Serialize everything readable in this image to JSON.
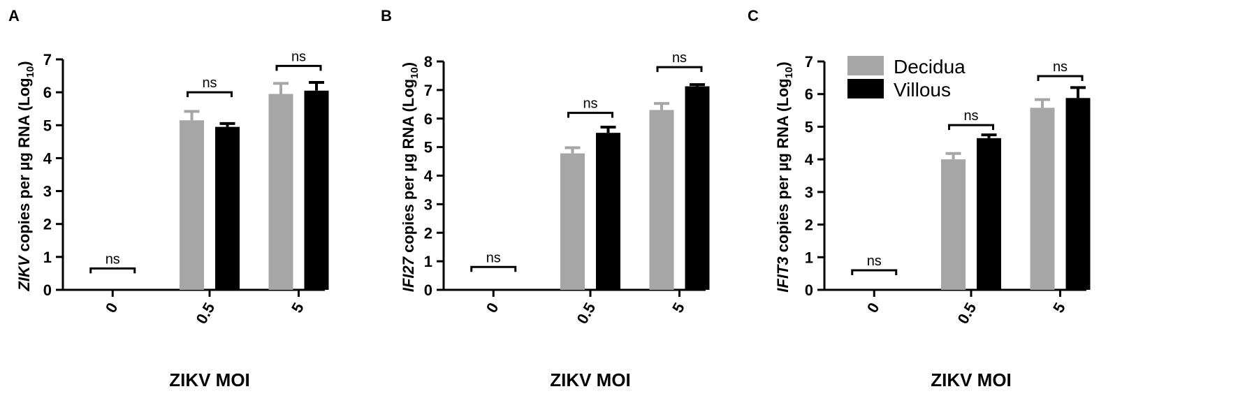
{
  "colors": {
    "decidua": "#a6a6a6",
    "villous": "#000000",
    "axis": "#000000"
  },
  "legend": {
    "placement": "top-left",
    "panel": "C",
    "items": [
      {
        "label": "Decidua",
        "color": "#a6a6a6"
      },
      {
        "label": "Villous",
        "color": "#000000"
      }
    ]
  },
  "chart_data": [
    {
      "type": "bar",
      "panel_label": "A",
      "categories": [
        "0",
        "0.5",
        "5"
      ],
      "xlabel": "ZIKV MOI",
      "ylabel": {
        "italic": "ZIKV",
        "text": " copies per µg RNA (Log",
        "sub": "10",
        "close": ")"
      },
      "ylim": [
        0,
        7
      ],
      "yticks": [
        "0",
        "1",
        "2",
        "3",
        "4",
        "5",
        "6",
        "7"
      ],
      "series": [
        {
          "name": "Decidua",
          "values": [
            0,
            5.15,
            5.95
          ],
          "errors": [
            0,
            0.27,
            0.32
          ]
        },
        {
          "name": "Villous",
          "values": [
            0,
            4.95,
            6.05
          ],
          "errors": [
            0,
            0.1,
            0.25
          ]
        }
      ],
      "annotations": [
        {
          "text": "ns",
          "category": 0,
          "y": 0.65
        },
        {
          "text": "ns",
          "category": 1,
          "y": 6.0
        },
        {
          "text": "ns",
          "category": 2,
          "y": 6.8
        }
      ]
    },
    {
      "type": "bar",
      "panel_label": "B",
      "categories": [
        "0",
        "0.5",
        "5"
      ],
      "xlabel": "ZIKV MOI",
      "ylabel": {
        "italic": "IFI27",
        "text": " copies per µg RNA (Log",
        "sub": "10",
        "close": ")"
      },
      "ylim": [
        0,
        8
      ],
      "yticks": [
        "0",
        "1",
        "2",
        "3",
        "4",
        "5",
        "6",
        "7",
        "8"
      ],
      "series": [
        {
          "name": "Decidua",
          "values": [
            0,
            4.78,
            6.3
          ],
          "errors": [
            0,
            0.2,
            0.23
          ]
        },
        {
          "name": "Villous",
          "values": [
            0,
            5.5,
            7.13
          ],
          "errors": [
            0,
            0.2,
            0.06
          ]
        }
      ],
      "annotations": [
        {
          "text": "ns",
          "category": 0,
          "y": 0.8
        },
        {
          "text": "ns",
          "category": 1,
          "y": 6.2
        },
        {
          "text": "ns",
          "category": 2,
          "y": 7.8
        }
      ]
    },
    {
      "type": "bar",
      "panel_label": "C",
      "categories": [
        "0",
        "0.5",
        "5"
      ],
      "xlabel": "ZIKV MOI",
      "ylabel": {
        "italic": "IFIT3",
        "text": " copies per µg RNA (Log",
        "sub": "10",
        "close": ")"
      },
      "ylim": [
        0,
        7
      ],
      "yticks": [
        "0",
        "1",
        "2",
        "3",
        "4",
        "5",
        "6",
        "7"
      ],
      "series": [
        {
          "name": "Decidua",
          "values": [
            0,
            4.0,
            5.58
          ],
          "errors": [
            0,
            0.18,
            0.25
          ]
        },
        {
          "name": "Villous",
          "values": [
            0,
            4.65,
            5.88
          ],
          "errors": [
            0,
            0.1,
            0.32
          ]
        }
      ],
      "annotations": [
        {
          "text": "ns",
          "category": 0,
          "y": 0.6
        },
        {
          "text": "ns",
          "category": 1,
          "y": 5.05
        },
        {
          "text": "ns",
          "category": 2,
          "y": 6.55
        }
      ]
    }
  ]
}
